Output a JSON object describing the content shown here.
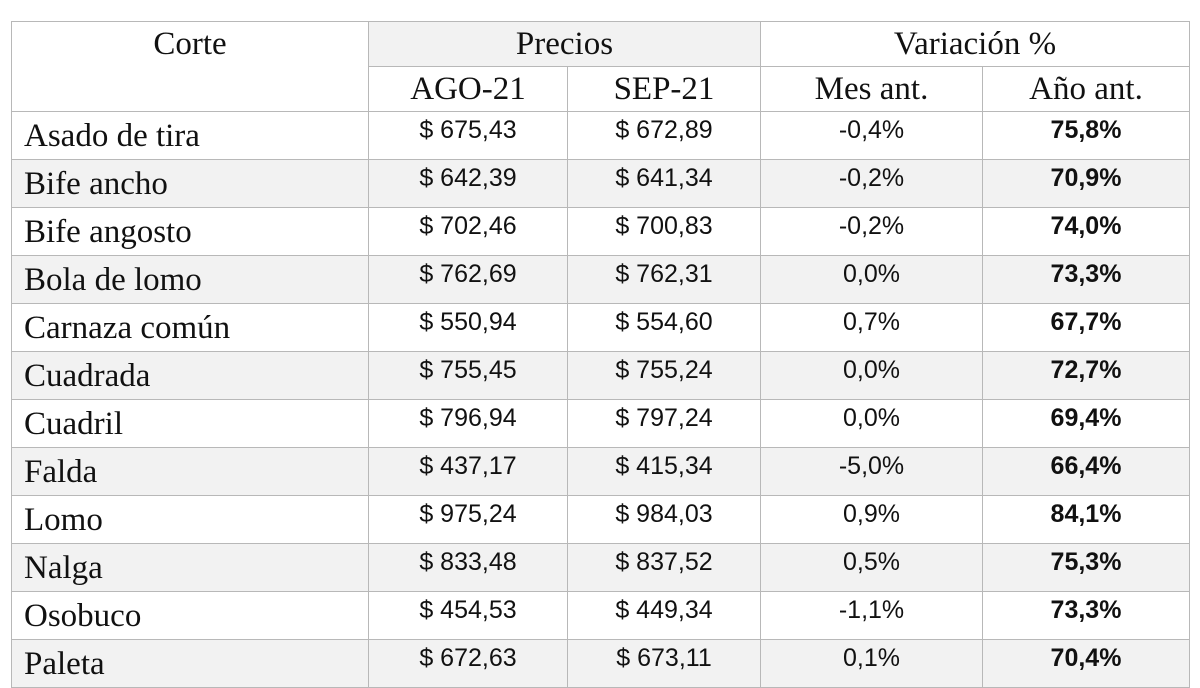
{
  "table": {
    "headers": {
      "corte": "Corte",
      "precios": "Precios",
      "variacion": "Variación %",
      "ago": "AGO-21",
      "sep": "SEP-21",
      "mes_ant": "Mes ant.",
      "anio_ant": "Año ant."
    },
    "rows": [
      {
        "corte": "Asado de tira",
        "ago": "$ 675,43",
        "sep": "$ 672,89",
        "mes": "-0,4%",
        "anio": "75,8%"
      },
      {
        "corte": "Bife ancho",
        "ago": "$ 642,39",
        "sep": "$ 641,34",
        "mes": "-0,2%",
        "anio": "70,9%"
      },
      {
        "corte": "Bife angosto",
        "ago": "$ 702,46",
        "sep": "$ 700,83",
        "mes": "-0,2%",
        "anio": "74,0%"
      },
      {
        "corte": "Bola de lomo",
        "ago": "$ 762,69",
        "sep": "$ 762,31",
        "mes": "0,0%",
        "anio": "73,3%"
      },
      {
        "corte": "Carnaza común",
        "ago": "$ 550,94",
        "sep": "$ 554,60",
        "mes": "0,7%",
        "anio": "67,7%"
      },
      {
        "corte": "Cuadrada",
        "ago": "$ 755,45",
        "sep": "$ 755,24",
        "mes": "0,0%",
        "anio": "72,7%"
      },
      {
        "corte": "Cuadril",
        "ago": "$ 796,94",
        "sep": "$ 797,24",
        "mes": "0,0%",
        "anio": "69,4%"
      },
      {
        "corte": "Falda",
        "ago": "$ 437,17",
        "sep": "$ 415,34",
        "mes": "-5,0%",
        "anio": "66,4%"
      },
      {
        "corte": "Lomo",
        "ago": "$ 975,24",
        "sep": "$ 984,03",
        "mes": "0,9%",
        "anio": "84,1%"
      },
      {
        "corte": "Nalga",
        "ago": "$ 833,48",
        "sep": "$ 837,52",
        "mes": "0,5%",
        "anio": "75,3%"
      },
      {
        "corte": "Osobuco",
        "ago": "$ 454,53",
        "sep": "$ 449,34",
        "mes": "-1,1%",
        "anio": "73,3%"
      },
      {
        "corte": "Paleta",
        "ago": "$ 672,63",
        "sep": "$ 673,11",
        "mes": "0,1%",
        "anio": "70,4%"
      }
    ]
  },
  "colors": {
    "border": "#b8b8b8",
    "shade": "#f2f2f2",
    "text": "#111111"
  }
}
